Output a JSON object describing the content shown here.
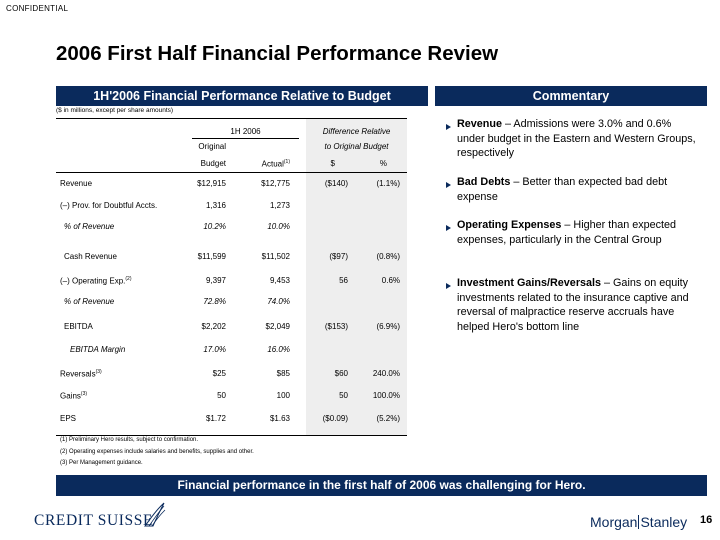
{
  "confidential": "CONFIDENTIAL",
  "title": "2006 First Half Financial Performance Review",
  "left_header": "1H'2006 Financial Performance Relative to Budget",
  "right_header": "Commentary",
  "units_note": "($ in millions, except per share amounts)",
  "table": {
    "group_header": "1H 2006",
    "diff_header_line1": "Difference Relative",
    "diff_header_line2": "to Original Budget",
    "col_original_line1": "Original",
    "col_original_line2": "Budget",
    "col_actual": "Actual",
    "col_actual_sup": "(1)",
    "col_dollar": "$",
    "col_pct": "%",
    "rows": [
      {
        "label": "Revenue",
        "budget": "$12,915",
        "actual": "$12,775",
        "diff": "($140)",
        "pct": "(1.1%)"
      },
      {
        "label": "(–) Prov. for Doubtful Accts.",
        "budget": "1,316",
        "actual": "1,273",
        "diff": "",
        "pct": ""
      },
      {
        "label": "% of Revenue",
        "budget": "10.2%",
        "actual": "10.0%",
        "diff": "",
        "pct": ""
      },
      {
        "label": "Cash Revenue",
        "budget": "$11,599",
        "actual": "$11,502",
        "diff": "($97)",
        "pct": "(0.8%)"
      },
      {
        "label": "(–) Operating Exp.",
        "sup": "(2)",
        "budget": "9,397",
        "actual": "9,453",
        "diff": "56",
        "pct": "0.6%"
      },
      {
        "label": "% of Revenue",
        "budget": "72.8%",
        "actual": "74.0%",
        "diff": "",
        "pct": ""
      },
      {
        "label": "EBITDA",
        "budget": "$2,202",
        "actual": "$2,049",
        "diff": "($153)",
        "pct": "(6.9%)"
      },
      {
        "label": "EBITDA Margin",
        "budget": "17.0%",
        "actual": "16.0%",
        "diff": "",
        "pct": ""
      },
      {
        "label": "Reversals",
        "sup": "(3)",
        "budget": "$25",
        "actual": "$85",
        "diff": "$60",
        "pct": "240.0%"
      },
      {
        "label": "Gains",
        "sup": "(3)",
        "budget": "50",
        "actual": "100",
        "diff": "50",
        "pct": "100.0%"
      },
      {
        "label": "EPS",
        "budget": "$1.72",
        "actual": "$1.63",
        "diff": "($0.09)",
        "pct": "(5.2%)"
      }
    ]
  },
  "footnotes": [
    "(1) Preliminary Hero results, subject to confirmation.",
    "(2) Operating expenses include salaries and benefits, supplies and other.",
    "(3) Per Management guidance."
  ],
  "commentary": [
    {
      "bold": "Revenue",
      "text": " – Admissions were 3.0% and 0.6% under budget in the Eastern and Western Groups, respectively"
    },
    {
      "bold": "Bad Debts",
      "text": " – Better than expected bad debt expense"
    },
    {
      "bold": "Operating Expenses",
      "text": " – Higher than expected expenses, particularly in the Central Group"
    },
    {
      "bold": "Investment Gains/Reversals",
      "text": " – Gains on equity investments related to the insurance captive and reversal of malpractice reserve accruals have helped Hero's bottom line"
    }
  ],
  "banner": "Financial performance in the first half of 2006 was challenging for Hero.",
  "logos": {
    "left": "CREDIT SUISSE",
    "right_a": "Morgan",
    "right_b": "Stanley"
  },
  "page_number": "16",
  "colors": {
    "navy": "#0a2a5c",
    "shade": "#eeeeee"
  }
}
